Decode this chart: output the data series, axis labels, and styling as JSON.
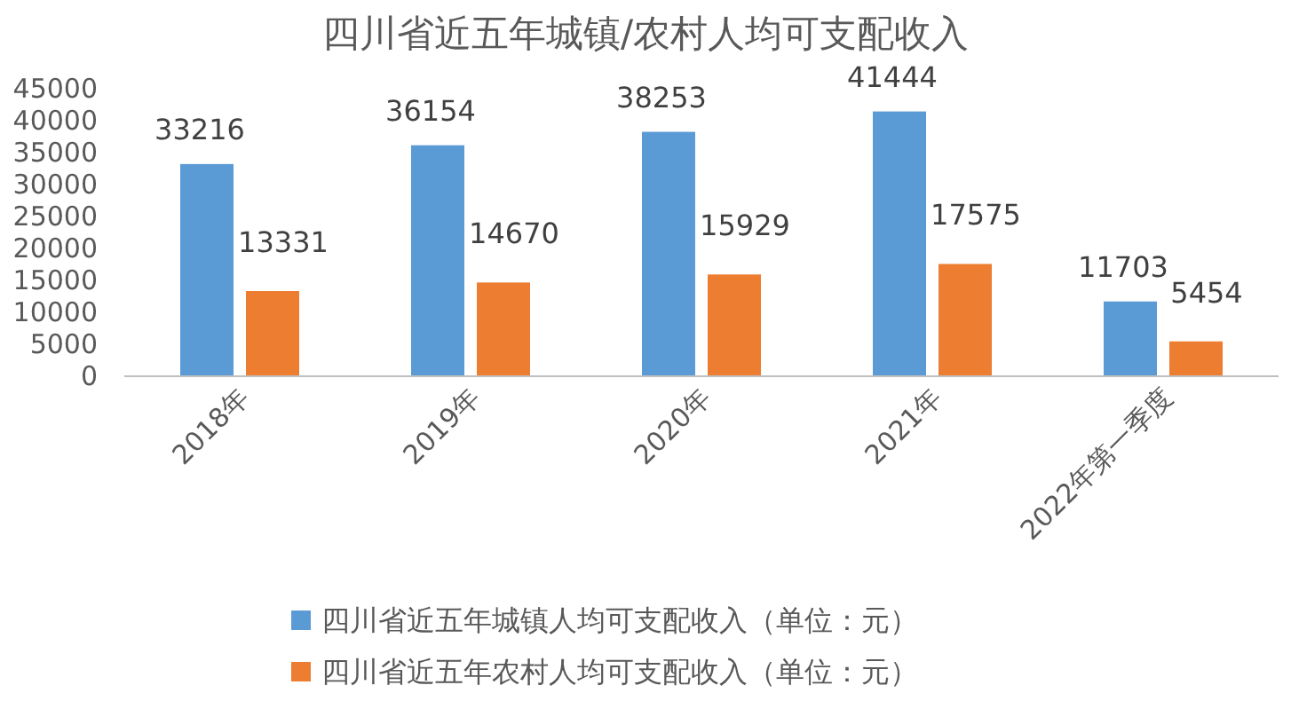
{
  "chart_data": {
    "type": "bar",
    "title": "四川省近五年城镇/农村人均可支配收入",
    "categories": [
      "2018年",
      "2019年",
      "2020年",
      "2021年",
      "2022年第一季度"
    ],
    "series": [
      {
        "name": "四川省近五年城镇人均可支配收入（单位：元）",
        "color": "#5b9bd5",
        "values": [
          33216,
          36154,
          38253,
          41444,
          11703
        ]
      },
      {
        "name": "四川省近五年农村人均可支配收入（单位：元）",
        "color": "#ed7d31",
        "values": [
          13331,
          14670,
          15929,
          17575,
          5454
        ]
      }
    ],
    "ylim": [
      0,
      45000
    ],
    "yticks": [
      0,
      5000,
      10000,
      15000,
      20000,
      25000,
      30000,
      35000,
      40000,
      45000
    ],
    "data_labels": true,
    "legend": "bottom",
    "grid": false
  }
}
